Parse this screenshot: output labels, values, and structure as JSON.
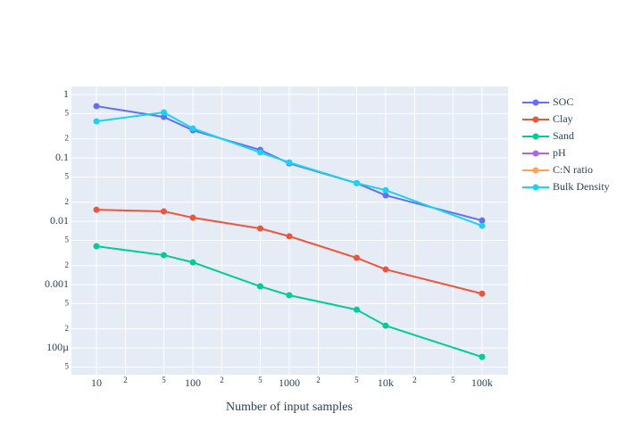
{
  "chart_data": {
    "type": "line",
    "x_label": "Number of input samples",
    "x": [
      10,
      50,
      100,
      500,
      1000,
      5000,
      10000,
      100000
    ],
    "series": [
      {
        "name": "SOC",
        "color": "#636efa",
        "values": [
          0.656,
          0.444,
          0.273,
          0.134,
          0.082,
          0.04,
          0.0257,
          0.0103
        ]
      },
      {
        "name": "Clay",
        "color": "#ef553b",
        "values": [
          0.0152,
          0.0143,
          0.0114,
          0.0077,
          0.0058,
          0.00265,
          0.00174,
          0.00072
        ]
      },
      {
        "name": "Sand",
        "color": "#00cc96",
        "values": [
          0.00404,
          0.00292,
          0.00225,
          0.00094,
          0.00068,
          0.000403,
          0.000225,
          7.23e-05
        ]
      },
      {
        "name": "pH",
        "color": "#ab63fa",
        "values": [
          null,
          null,
          null,
          null,
          null,
          null,
          null,
          null
        ]
      },
      {
        "name": "C:N ratio",
        "color": "#ffa15a",
        "values": [
          null,
          null,
          null,
          null,
          null,
          null,
          null,
          null
        ]
      },
      {
        "name": "Bulk Density",
        "color": "#19d3f3",
        "values": [
          0.378,
          0.523,
          0.292,
          0.122,
          0.085,
          0.04,
          0.031,
          0.0085
        ]
      }
    ],
    "xlog": true,
    "ylog": true,
    "xlim": [
      5.5,
      186000
    ],
    "ylim": [
      3.8e-05,
      1.34
    ],
    "xticks": [
      10,
      {
        "value": 20,
        "label": "2"
      },
      {
        "value": 50,
        "label": "5"
      },
      100,
      {
        "value": 200,
        "label": "2"
      },
      {
        "value": 500,
        "label": "5"
      },
      1000,
      {
        "value": 2000,
        "label": "2"
      },
      {
        "value": 5000,
        "label": "5"
      },
      {
        "value": 10000,
        "label": "10k"
      },
      {
        "value": 20000,
        "label": "2"
      },
      {
        "value": 50000,
        "label": "5"
      },
      {
        "value": 100000,
        "label": "100k"
      }
    ],
    "yticks": [
      {
        "value": 5e-05,
        "label": "5"
      },
      {
        "value": 0.0001,
        "label": "100µ"
      },
      {
        "value": 0.0002,
        "label": "2"
      },
      {
        "value": 0.0005,
        "label": "5"
      },
      0.001,
      {
        "value": 0.002,
        "label": "2"
      },
      {
        "value": 0.005,
        "label": "5"
      },
      0.01,
      {
        "value": 0.02,
        "label": "2"
      },
      {
        "value": 0.05,
        "label": "5"
      },
      0.1,
      {
        "value": 0.2,
        "label": "2"
      },
      {
        "value": 0.5,
        "label": "5"
      },
      1
    ],
    "grid": true,
    "legend": "right"
  }
}
